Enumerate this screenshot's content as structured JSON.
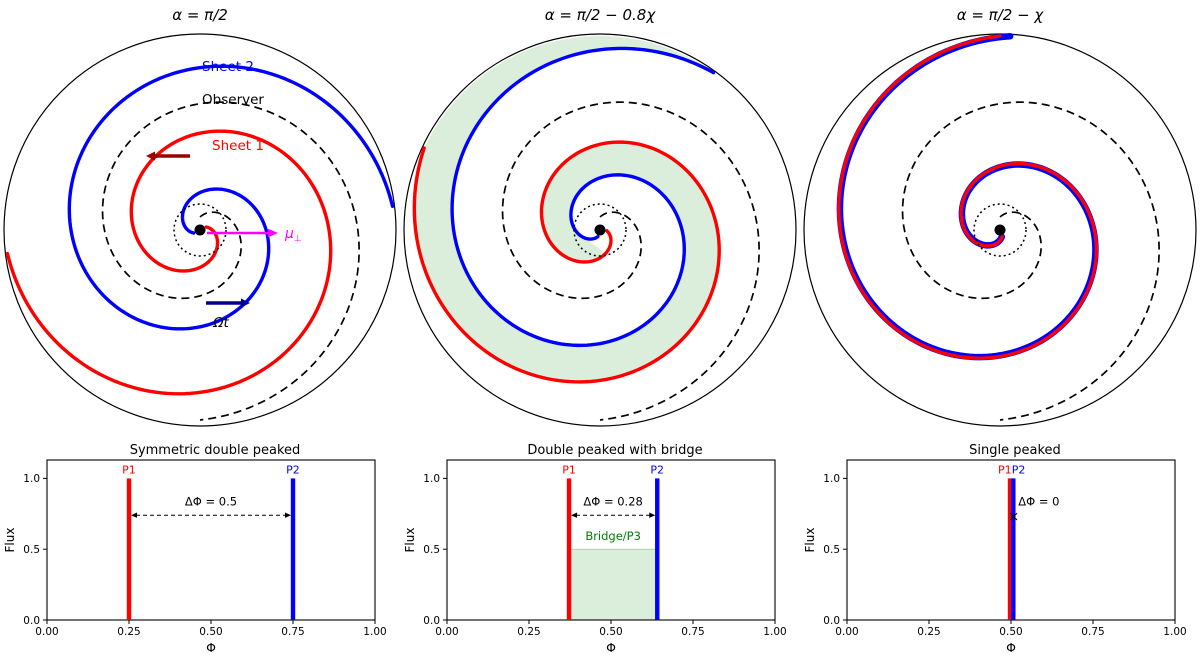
{
  "colors": {
    "sheet1": "#ff0000",
    "sheet2": "#0000ff",
    "observer": "#000000",
    "bridge_fill": "#008000",
    "bridge_fill_opacity": 0.14,
    "mu_arrow": "#ff00ff",
    "sheet1_motion_arrow": "#990000",
    "omega_arrow": "#00008b",
    "bridge_label": "#008000"
  },
  "spiral_panels": [
    {
      "title": "α = π/2",
      "delta_phi": 0.5,
      "turns": 1.55,
      "red_end_deg": 187,
      "blue_end_deg": 7,
      "observer_end_deg": 270,
      "bridge": false,
      "annotations": {
        "sheet2_label": "Sheet 2",
        "observer_label": "Observer",
        "sheet1_label": "Sheet 1",
        "mu_label": "μ",
        "mu_label_sub": "⊥",
        "omega_label": "Ωt"
      }
    },
    {
      "title": "α = π/2 − 0.8χ",
      "delta_phi": 0.28,
      "turns": 1.55,
      "red_end_deg": 155,
      "blue_end_deg": 54.2,
      "observer_end_deg": 270,
      "bridge": true
    },
    {
      "title": "α = π/2 − χ",
      "delta_phi": 0.0,
      "turns": 1.55,
      "red_end_deg": 90,
      "blue_end_deg": 87,
      "observer_end_deg": 270,
      "bridge": false,
      "blue_linewidth": 6.5
    }
  ],
  "chart_data": [
    {
      "type": "line",
      "title": "Symmetric double peaked",
      "xlabel": "Φ",
      "ylabel": "Flux",
      "xlim": [
        0,
        1
      ],
      "ylim": [
        0,
        1.13
      ],
      "xtick_vals": [
        0,
        0.25,
        0.5,
        0.75,
        1
      ],
      "xtick_labels": [
        "0.00",
        "0.25",
        "0.50",
        "0.75",
        "1.00"
      ],
      "ytick_vals": [
        0,
        0.5,
        1
      ],
      "ytick_labels": [
        "0.0",
        "0.5",
        "1.0"
      ],
      "peak_label_y": 1.04,
      "peaks": [
        {
          "name": "P1",
          "x": 0.25,
          "height": 1.0,
          "color": "#ff0000",
          "label_x": 0.25
        },
        {
          "name": "P2",
          "x": 0.75,
          "height": 1.0,
          "color": "#0000ff",
          "label_x": 0.75
        }
      ],
      "delta": {
        "text": "ΔΦ = 0.5",
        "x1": 0.25,
        "x2": 0.75,
        "arrow_y": 0.74,
        "label_x": 0.5,
        "label_y": 0.81,
        "collapsed": false
      }
    },
    {
      "type": "line",
      "title": "Double peaked with bridge",
      "xlabel": "Φ",
      "ylabel": "Flux",
      "xlim": [
        0,
        1
      ],
      "ylim": [
        0,
        1.13
      ],
      "xtick_vals": [
        0,
        0.25,
        0.5,
        0.75,
        1
      ],
      "xtick_labels": [
        "0.00",
        "0.25",
        "0.50",
        "0.75",
        "1.00"
      ],
      "ytick_vals": [
        0,
        0.5,
        1
      ],
      "ytick_labels": [
        "0.0",
        "0.5",
        "1.0"
      ],
      "peak_label_y": 1.04,
      "peaks": [
        {
          "name": "P1",
          "x": 0.372,
          "height": 1.0,
          "color": "#ff0000",
          "label_x": 0.372
        },
        {
          "name": "P2",
          "x": 0.641,
          "height": 1.0,
          "color": "#0000ff",
          "label_x": 0.641
        }
      ],
      "bridge": {
        "label": "Bridge/P3",
        "x1": 0.372,
        "x2": 0.641,
        "height": 0.5,
        "label_x": 0.5065,
        "label_y": 0.565
      },
      "delta": {
        "text": "ΔΦ = 0.28",
        "x1": 0.372,
        "x2": 0.641,
        "arrow_y": 0.74,
        "label_x": 0.5065,
        "label_y": 0.81,
        "collapsed": false
      }
    },
    {
      "type": "line",
      "title": "Single peaked",
      "xlabel": "Φ",
      "ylabel": "Flux",
      "xlim": [
        0,
        1
      ],
      "ylim": [
        0,
        1.13
      ],
      "xtick_vals": [
        0,
        0.25,
        0.5,
        0.75,
        1
      ],
      "xtick_labels": [
        "0.00",
        "0.25",
        "0.50",
        "0.75",
        "1.00"
      ],
      "ytick_vals": [
        0,
        0.5,
        1
      ],
      "ytick_labels": [
        "0.0",
        "0.5",
        "1.0"
      ],
      "peak_label_y": 1.04,
      "peaks": [
        {
          "name": "P1",
          "x": 0.497,
          "height": 1.0,
          "color": "#ff0000",
          "label_x": 0.481
        },
        {
          "name": "P2",
          "x": 0.507,
          "height": 1.0,
          "color": "#0000ff",
          "label_x": 0.523
        }
      ],
      "delta": {
        "text": "ΔΦ = 0",
        "x1": 0.508,
        "x2": 0.508,
        "arrow_y": 0.73,
        "label_x": 0.585,
        "label_y": 0.81,
        "collapsed": true
      }
    }
  ]
}
